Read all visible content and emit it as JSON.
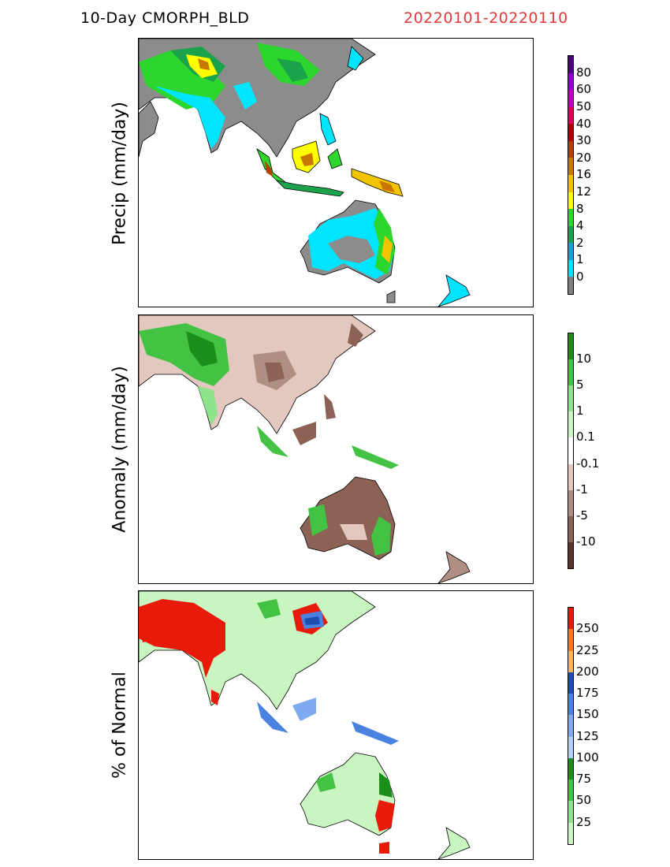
{
  "header": {
    "title": "10-Day CMORPH_BLD",
    "period": "20220101-20220110"
  },
  "panels": [
    {
      "ylabel": "Precip (mm/day)",
      "colorbar": {
        "colors": [
          "#808080",
          "#00e5ff",
          "#1aa0d8",
          "#1aa34a",
          "#2cd62c",
          "#ffff00",
          "#f2c400",
          "#c87800",
          "#b04000",
          "#b00000",
          "#e00060",
          "#c000c0",
          "#9400d3",
          "#4b0082"
        ],
        "labels": [
          "0",
          "1",
          "2",
          "4",
          "8",
          "12",
          "16",
          "20",
          "30",
          "40",
          "50",
          "60",
          "80"
        ]
      }
    },
    {
      "ylabel": "Anomaly (mm/day)",
      "colorbar": {
        "colors": [
          "#5a3428",
          "#8b6253",
          "#b08f83",
          "#e3c8bf",
          "#ffffff",
          "#c8f5c0",
          "#8fe38a",
          "#44c244",
          "#1a8f1a"
        ],
        "labels": [
          "-10",
          "-5",
          "-1",
          "-0.1",
          "0.1",
          "1",
          "5",
          "10"
        ]
      }
    },
    {
      "ylabel": "% of Normal",
      "colorbar": {
        "colors": [
          "#c8f5c0",
          "#8fe38a",
          "#44c244",
          "#1a8f1a",
          "#b4d2ff",
          "#7eaaf0",
          "#4a82e0",
          "#1e4fb0",
          "#ffb65a",
          "#ff7a1a",
          "#e81a0a"
        ],
        "labels": [
          "25",
          "50",
          "75",
          "100",
          "125",
          "150",
          "175",
          "200",
          "225",
          "250"
        ]
      }
    }
  ]
}
